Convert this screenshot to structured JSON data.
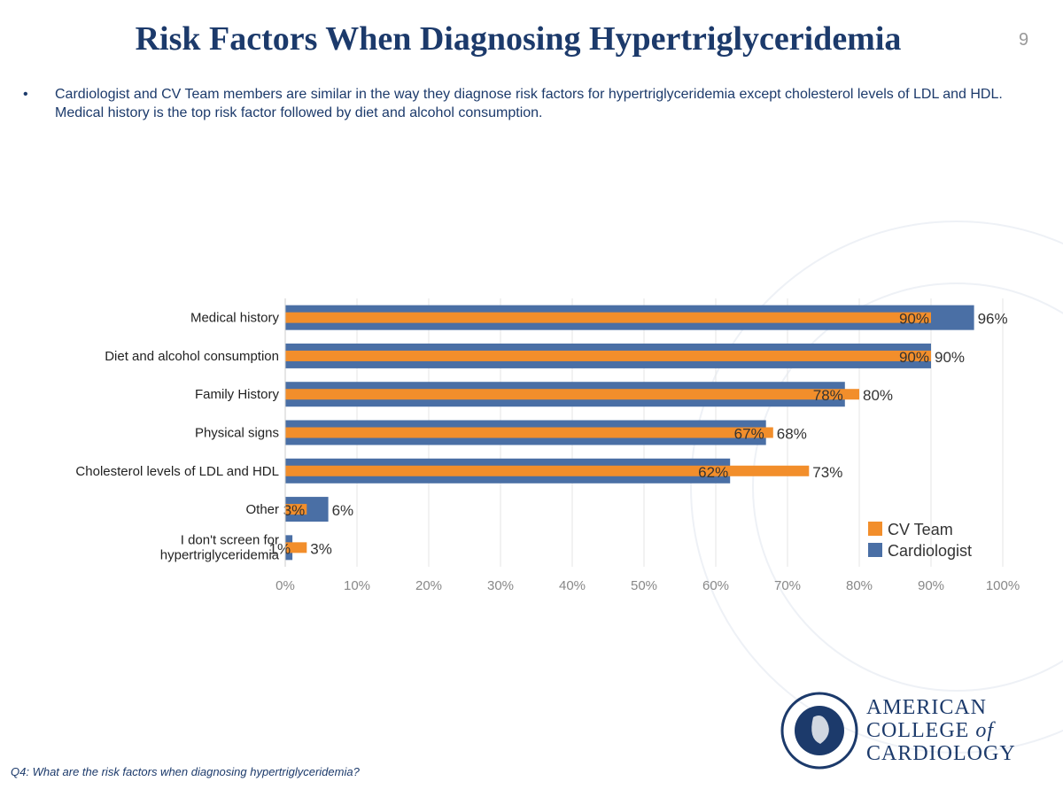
{
  "title": "Risk Factors When Diagnosing Hypertriglyceridemia",
  "page_number": "9",
  "bullet": "Cardiologist and CV Team members are similar in the way they diagnose risk factors for hypertriglyceridemia except cholesterol levels of LDL and HDL.  Medical history is the top risk factor followed by diet and alcohol consumption.",
  "footnote": "Q4: What are the risk factors when diagnosing hypertriglyceridemia?",
  "logo": {
    "line1": "AMERICAN",
    "line2": "COLLEGE",
    "line2_of": "of",
    "line3": "CARDIOLOGY",
    "seal_text": "AMERICAN COLLEGE OF CARDIOLOGY"
  },
  "chart_data": {
    "type": "bar",
    "orientation": "horizontal",
    "categories": [
      "Medical history",
      "Diet and alcohol consumption",
      "Family History",
      "Physical signs",
      "Cholesterol levels of LDL and HDL",
      "Other",
      "I don't screen for hypertriglyceridemia"
    ],
    "series": [
      {
        "name": "Cardiologist",
        "color": "#4a6fa5",
        "values": [
          96,
          90,
          78,
          67,
          62,
          6,
          1
        ],
        "labels": [
          "96%",
          "90%",
          "78%",
          "67%",
          "62%",
          "6%",
          "1%"
        ]
      },
      {
        "name": "CV Team",
        "color": "#f28e2b",
        "values": [
          90,
          90,
          80,
          68,
          73,
          3,
          3
        ],
        "labels": [
          "90%",
          "90%",
          "80%",
          "68%",
          "73%",
          "3%",
          "3%"
        ]
      }
    ],
    "xlim": [
      0,
      100
    ],
    "xticks": [
      "0%",
      "10%",
      "20%",
      "30%",
      "40%",
      "50%",
      "60%",
      "70%",
      "80%",
      "90%",
      "100%"
    ],
    "grid": true,
    "legend": "bottom-right"
  }
}
